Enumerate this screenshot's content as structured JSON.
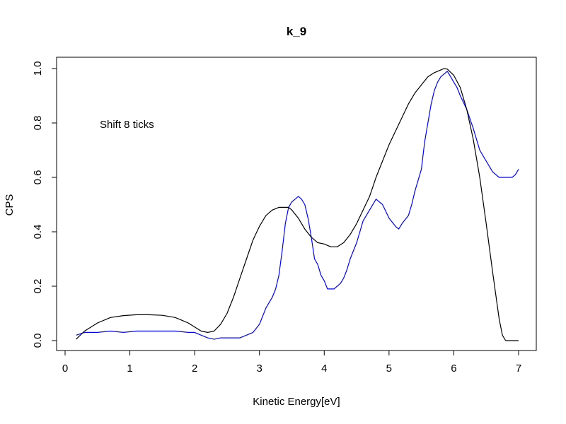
{
  "chart_data": {
    "type": "line",
    "title": "k_9",
    "xlabel": "Kinetic Energy[eV]",
    "ylabel": "CPS",
    "xlim": [
      0,
      7
    ],
    "ylim": [
      0,
      1.0
    ],
    "xticks": [
      "0",
      "1",
      "2",
      "3",
      "4",
      "5",
      "6",
      "7"
    ],
    "yticks": [
      "0.0",
      "0.2",
      "0.4",
      "0.6",
      "0.8",
      "1.0"
    ],
    "annotation": "Shift 8 ticks",
    "grid": false,
    "series": [
      {
        "color": "#0000ff",
        "x": [
          0.17,
          0.3,
          0.5,
          0.7,
          0.9,
          1.1,
          1.3,
          1.5,
          1.7,
          1.9,
          2.0,
          2.1,
          2.2,
          2.3,
          2.4,
          2.5,
          2.6,
          2.7,
          2.8,
          2.9,
          3.0,
          3.05,
          3.1,
          3.15,
          3.2,
          3.25,
          3.3,
          3.35,
          3.4,
          3.45,
          3.5,
          3.55,
          3.6,
          3.65,
          3.7,
          3.75,
          3.8,
          3.85,
          3.9,
          3.95,
          4.0,
          4.05,
          4.1,
          4.15,
          4.2,
          4.25,
          4.3,
          4.35,
          4.4,
          4.5,
          4.6,
          4.7,
          4.8,
          4.9,
          5.0,
          5.1,
          5.15,
          5.2,
          5.3,
          5.35,
          5.4,
          5.5,
          5.55,
          5.6,
          5.65,
          5.7,
          5.75,
          5.8,
          5.85,
          5.9,
          5.95,
          6.0,
          6.05,
          6.1,
          6.2,
          6.3,
          6.4,
          6.5,
          6.6,
          6.7,
          6.8,
          6.9,
          6.95,
          7.0
        ],
        "y": [
          0.02,
          0.03,
          0.03,
          0.035,
          0.03,
          0.035,
          0.035,
          0.035,
          0.035,
          0.03,
          0.03,
          0.02,
          0.01,
          0.005,
          0.01,
          0.01,
          0.01,
          0.01,
          0.02,
          0.03,
          0.06,
          0.09,
          0.12,
          0.14,
          0.16,
          0.19,
          0.24,
          0.33,
          0.43,
          0.49,
          0.51,
          0.52,
          0.53,
          0.52,
          0.5,
          0.45,
          0.38,
          0.3,
          0.28,
          0.24,
          0.22,
          0.19,
          0.19,
          0.19,
          0.2,
          0.21,
          0.23,
          0.26,
          0.3,
          0.36,
          0.44,
          0.48,
          0.52,
          0.5,
          0.45,
          0.42,
          0.41,
          0.43,
          0.46,
          0.5,
          0.55,
          0.63,
          0.73,
          0.8,
          0.87,
          0.92,
          0.95,
          0.97,
          0.98,
          0.99,
          0.97,
          0.95,
          0.93,
          0.9,
          0.85,
          0.78,
          0.7,
          0.66,
          0.62,
          0.6,
          0.6,
          0.6,
          0.61,
          0.63
        ]
      },
      {
        "color": "#000000",
        "x": [
          0.17,
          0.3,
          0.5,
          0.7,
          0.9,
          1.1,
          1.3,
          1.5,
          1.7,
          1.9,
          2.0,
          2.1,
          2.2,
          2.3,
          2.4,
          2.5,
          2.6,
          2.7,
          2.8,
          2.9,
          3.0,
          3.1,
          3.2,
          3.3,
          3.4,
          3.45,
          3.5,
          3.6,
          3.7,
          3.8,
          3.9,
          4.0,
          4.1,
          4.2,
          4.3,
          4.4,
          4.5,
          4.6,
          4.7,
          4.8,
          4.9,
          5.0,
          5.1,
          5.2,
          5.3,
          5.4,
          5.5,
          5.6,
          5.7,
          5.8,
          5.85,
          5.9,
          6.0,
          6.1,
          6.2,
          6.3,
          6.4,
          6.5,
          6.6,
          6.7,
          6.75,
          6.8,
          6.9,
          7.0
        ],
        "y": [
          0.005,
          0.035,
          0.065,
          0.085,
          0.092,
          0.095,
          0.095,
          0.093,
          0.085,
          0.065,
          0.05,
          0.035,
          0.03,
          0.035,
          0.06,
          0.1,
          0.16,
          0.23,
          0.3,
          0.37,
          0.42,
          0.46,
          0.48,
          0.49,
          0.49,
          0.49,
          0.48,
          0.45,
          0.41,
          0.38,
          0.36,
          0.355,
          0.345,
          0.345,
          0.36,
          0.39,
          0.43,
          0.48,
          0.53,
          0.6,
          0.66,
          0.72,
          0.77,
          0.82,
          0.87,
          0.91,
          0.94,
          0.97,
          0.985,
          0.995,
          1.0,
          0.998,
          0.975,
          0.93,
          0.85,
          0.74,
          0.6,
          0.43,
          0.25,
          0.08,
          0.02,
          0.0,
          0.0,
          0.0
        ]
      }
    ]
  }
}
